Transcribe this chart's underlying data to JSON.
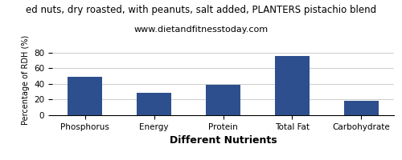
{
  "title_line1": "ed nuts, dry roasted, with peanuts, salt added, PLANTERS pistachio blend",
  "subtitle": "www.dietandfitnesstoday.com",
  "categories": [
    "Phosphorus",
    "Energy",
    "Protein",
    "Total Fat",
    "Carbohydrate"
  ],
  "values": [
    49,
    29,
    39,
    76,
    18
  ],
  "bar_color": "#2d4f8e",
  "ylabel": "Percentage of RDH (%)",
  "xlabel": "Different Nutrients",
  "ylim": [
    0,
    90
  ],
  "yticks": [
    0,
    20,
    40,
    60,
    80
  ],
  "title_fontsize": 8.5,
  "subtitle_fontsize": 8,
  "xlabel_fontsize": 9,
  "ylabel_fontsize": 7,
  "tick_fontsize": 7.5,
  "background_color": "#ffffff"
}
